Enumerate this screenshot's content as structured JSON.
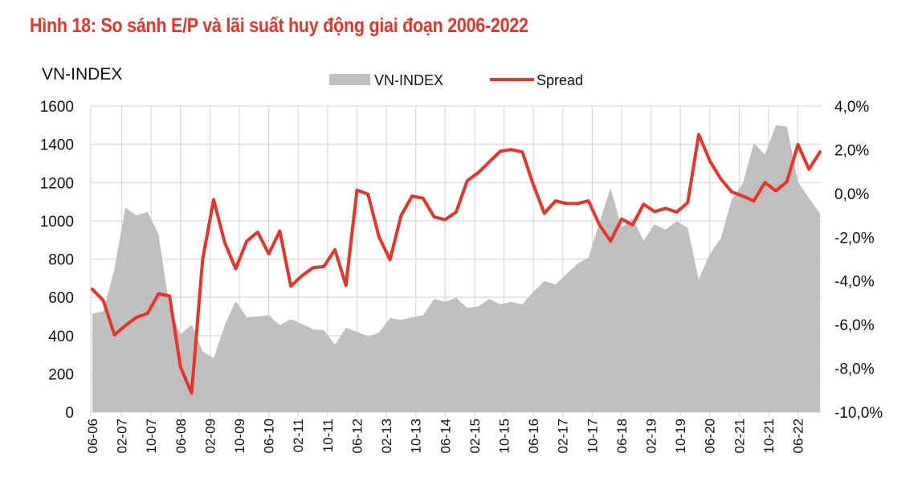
{
  "chart_data": {
    "type": "area+line",
    "title": "Hình 18: So sánh E/P và lãi suất huy động giai đoạn 2006-2022",
    "ylabel_left": "VN-INDEX",
    "ylim_left": [
      0,
      1600
    ],
    "yticks_left": [
      "0",
      "200",
      "400",
      "600",
      "800",
      "1000",
      "1200",
      "1400",
      "1600"
    ],
    "ylim_right": [
      -10,
      4
    ],
    "yticks_right": [
      "-10,0%",
      "-8,0%",
      "-6,0%",
      "-4,0%",
      "-2,0%",
      "0,0%",
      "2,0%",
      "4,0%"
    ],
    "xticks": [
      "06-06",
      "02-07",
      "10-07",
      "06-08",
      "02-09",
      "10-09",
      "06-10",
      "02-11",
      "10-11",
      "06-12",
      "02-13",
      "10-13",
      "06-14",
      "02-15",
      "10-15",
      "06-16",
      "02-17",
      "10-17",
      "06-18",
      "02-19",
      "10-19",
      "06-20",
      "02-21",
      "10-21",
      "06-22"
    ],
    "x_start": "06-06",
    "x_frequency": "quarterly",
    "grid": true,
    "legend": "top-center",
    "series": [
      {
        "name": "VN-INDEX",
        "kind": "area",
        "axis": "left",
        "color": "#bfbfbf",
        "values": [
          514,
          528,
          748,
          1070,
          1028,
          1046,
          930,
          546,
          405,
          458,
          318,
          281,
          454,
          580,
          496,
          500,
          506,
          454,
          486,
          461,
          433,
          428,
          353,
          440,
          420,
          394,
          416,
          492,
          482,
          496,
          506,
          591,
          577,
          598,
          545,
          552,
          591,
          563,
          577,
          563,
          629,
          685,
          667,
          720,
          776,
          807,
          993,
          1172,
          965,
          1014,
          895,
          982,
          954,
          999,
          962,
          695,
          825,
          909,
          1112,
          1196,
          1406,
          1346,
          1500,
          1493,
          1203,
          1119,
          1038
        ]
      },
      {
        "name": "Spread",
        "kind": "line",
        "axis": "right",
        "unit": "%",
        "color": "#e8322a",
        "values": [
          -4.38,
          -4.9,
          -6.47,
          -6.04,
          -5.67,
          -5.49,
          -4.59,
          -4.69,
          -7.94,
          -9.14,
          -3.03,
          -0.28,
          -2.24,
          -3.44,
          -2.18,
          -1.77,
          -2.76,
          -1.72,
          -4.24,
          -3.77,
          -3.4,
          -3.34,
          -2.57,
          -4.2,
          0.15,
          -0.03,
          -1.99,
          -3.03,
          -1.01,
          -0.12,
          -0.22,
          -1.07,
          -1.2,
          -0.85,
          0.58,
          0.95,
          1.44,
          1.93,
          2.01,
          1.9,
          0.4,
          -0.91,
          -0.34,
          -0.46,
          -0.46,
          -0.34,
          -1.44,
          -2.18,
          -1.17,
          -1.44,
          -0.49,
          -0.83,
          -0.68,
          -0.85,
          -0.42,
          2.7,
          1.5,
          0.67,
          0.07,
          -0.12,
          -0.34,
          0.5,
          0.12,
          0.54,
          2.24,
          1.11,
          1.9
        ]
      }
    ]
  }
}
